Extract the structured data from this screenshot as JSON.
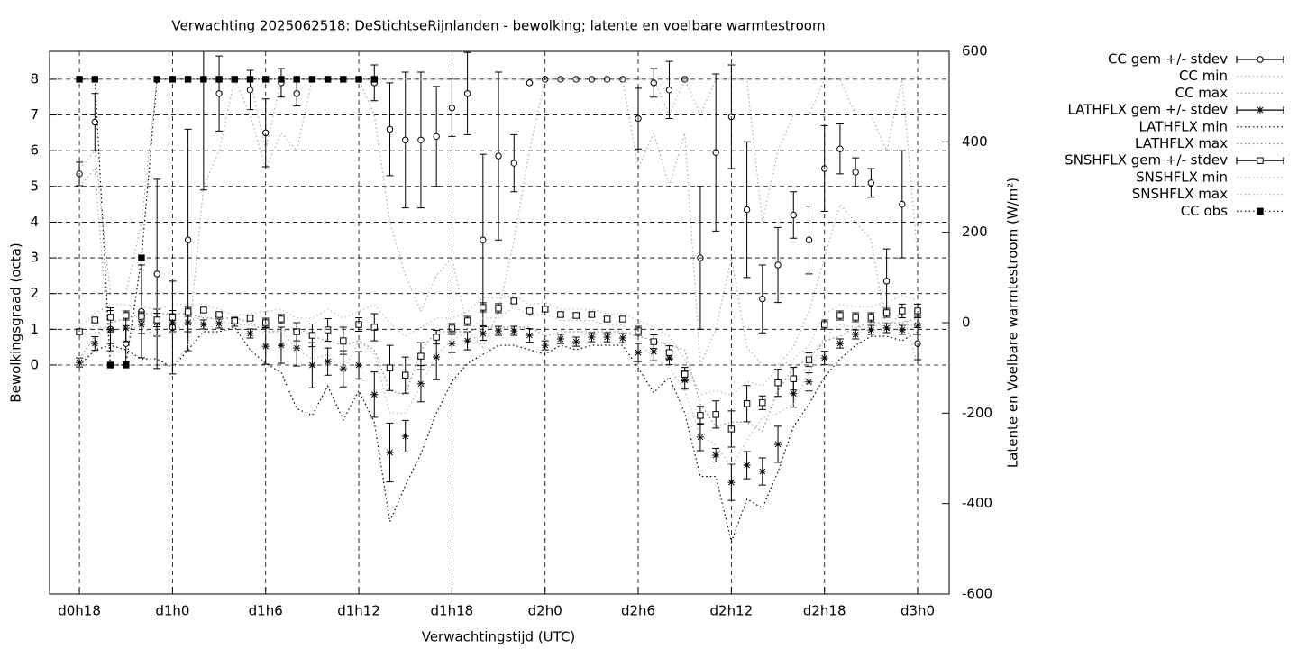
{
  "chart_data": {
    "type": "errorbar",
    "title": "Verwachting 2025062518: DeStichtseRijnlanden - bewolking; latente en voelbare warmtestroom",
    "x_label": "Verwachtingstijd (UTC)",
    "y_label": "Bewolkingsgraad (octa)",
    "y2_label": "Latente en Voelbare warmtestroom (W/m²)",
    "x": [
      18,
      19,
      20,
      21,
      22,
      23,
      24,
      25,
      26,
      27,
      28,
      29,
      30,
      31,
      32,
      33,
      34,
      35,
      36,
      37,
      38,
      39,
      40,
      41,
      42,
      43,
      44,
      45,
      46,
      47,
      48,
      49,
      50,
      51,
      52,
      53,
      54,
      55,
      56,
      57,
      58,
      59,
      60,
      61,
      62,
      63,
      64,
      65,
      66,
      67,
      68,
      69,
      70,
      71,
      72
    ],
    "xlim": [
      16.08,
      74.03
    ],
    "xticks": [
      {
        "value": 18,
        "label": "d0h18"
      },
      {
        "value": 24,
        "label": "d1h0"
      },
      {
        "value": 30,
        "label": "d1h6"
      },
      {
        "value": 36,
        "label": "d1h12"
      },
      {
        "value": 42,
        "label": "d1h18"
      },
      {
        "value": 48,
        "label": "d2h0"
      },
      {
        "value": 54,
        "label": "d2h6"
      },
      {
        "value": 60,
        "label": "d2h12"
      },
      {
        "value": 66,
        "label": "d2h18"
      },
      {
        "value": 72,
        "label": "d3h0"
      }
    ],
    "ylim": [
      -6.41,
      8.78
    ],
    "yticks": [
      0,
      1,
      2,
      3,
      4,
      5,
      6,
      7,
      8
    ],
    "y2lim": [
      -600,
      600
    ],
    "y2ticks": [
      -600,
      -400,
      -200,
      0,
      200,
      400,
      600
    ],
    "grid": true,
    "legend": "right",
    "series": [
      {
        "name": "CC gem +/- stdev",
        "color": "#000000",
        "marker": "circle",
        "dash": "none",
        "errorbars": true,
        "values": [
          5.35,
          6.8,
          1.0,
          0.6,
          1.5,
          2.55,
          1.05,
          3.5,
          8,
          7.6,
          8,
          7.7,
          6.5,
          7.9,
          7.6,
          8,
          8,
          8,
          8,
          7.9,
          6.6,
          6.3,
          6.3,
          6.4,
          7.2,
          7.6,
          3.5,
          5.85,
          5.65,
          7.9,
          8,
          8,
          8,
          8,
          8,
          8,
          6.9,
          7.9,
          7.7,
          8,
          3.0,
          5.95,
          6.95,
          4.35,
          1.85,
          2.8,
          4.2,
          3.5,
          5.5,
          6.05,
          5.4,
          5.1,
          2.35,
          4.5,
          0.6
        ],
        "errors": [
          0.33,
          0.8,
          0.6,
          0.5,
          1.3,
          2.65,
          1.3,
          3.1,
          3.1,
          1.05,
          0,
          0.55,
          0.95,
          0.4,
          0.35,
          0,
          0,
          0,
          0,
          0.5,
          1.3,
          1.9,
          1.9,
          1.4,
          0.8,
          1.15,
          2.4,
          2.35,
          0.8,
          0,
          0,
          0,
          0,
          0,
          0,
          0,
          0.85,
          0.4,
          0.8,
          0,
          2.0,
          2.2,
          1.45,
          1.9,
          0.95,
          1.05,
          0.65,
          0.95,
          1.2,
          0.7,
          0.4,
          0.4,
          0.9,
          1.5,
          0.45
        ]
      },
      {
        "name": "CC min",
        "color": "#aaaaaa",
        "marker": "none",
        "dash": "dotted",
        "values": [
          5,
          5.5,
          0,
          0,
          0,
          0,
          0,
          0.5,
          5,
          6,
          8,
          7,
          5.5,
          6.5,
          6,
          8,
          8,
          8,
          8,
          7,
          4,
          2.5,
          1.5,
          2.5,
          3,
          1,
          0.5,
          1.5,
          3.5,
          6,
          8,
          8,
          8,
          8,
          8,
          8,
          5.5,
          6.5,
          5,
          6.5,
          0,
          1,
          3,
          0.5,
          0,
          0,
          0.5,
          1.5,
          3,
          4.5,
          4,
          3.5,
          1,
          1.5,
          0
        ]
      },
      {
        "name": "CC max",
        "color": "#aaaaaa",
        "marker": "none",
        "dash": "dotted",
        "values": [
          5.5,
          6,
          2,
          2,
          4,
          8,
          8,
          8,
          8,
          8,
          8,
          8,
          6,
          8,
          8,
          8,
          8,
          8,
          8,
          8,
          8,
          8,
          8,
          8,
          8,
          8,
          8,
          8,
          8,
          8,
          8,
          8,
          8,
          8,
          8,
          8,
          8,
          8,
          7,
          8,
          7,
          8,
          8,
          8,
          4,
          6,
          7,
          7,
          8,
          8,
          7,
          7,
          6,
          8,
          3
        ]
      },
      {
        "name": "LATHFLX gem +/- stdev",
        "color": "#000000",
        "marker": "star",
        "dash": "none",
        "errorbars": true,
        "axis": "y2",
        "values": [
          -88,
          -46,
          -16,
          -12,
          -4,
          0,
          0,
          0,
          -4,
          -2,
          2,
          -24,
          -52,
          -50,
          -56,
          -94,
          -86,
          -102,
          -94,
          -159,
          -287,
          -251,
          -135,
          -76,
          -46,
          -40,
          -24,
          -18,
          -18,
          -28,
          -50,
          -36,
          -42,
          -32,
          -32,
          -34,
          -66,
          -64,
          -78,
          -127,
          -253,
          -293,
          -353,
          -315,
          -329,
          -269,
          -157,
          -131,
          -78,
          -46,
          -26,
          -16,
          -12,
          -16,
          -6
        ],
        "errors": [
          10,
          15,
          30,
          30,
          20,
          30,
          20,
          20,
          10,
          10,
          10,
          10,
          40,
          40,
          40,
          50,
          30,
          40,
          30,
          50,
          65,
          35,
          40,
          50,
          20,
          20,
          15,
          10,
          10,
          15,
          10,
          10,
          10,
          10,
          10,
          10,
          20,
          20,
          15,
          20,
          30,
          15,
          40,
          30,
          30,
          40,
          30,
          20,
          15,
          10,
          10,
          10,
          10,
          10,
          20
        ]
      },
      {
        "name": "LATHFLX min",
        "color": "#000000",
        "marker": "none",
        "dash": "dotted",
        "axis": "y2",
        "values": [
          -95,
          -60,
          -50,
          -60,
          -80,
          -80,
          -100,
          -60,
          -20,
          -20,
          -10,
          -60,
          -90,
          -110,
          -190,
          -205,
          -140,
          -215,
          -150,
          -220,
          -440,
          -360,
          -290,
          -200,
          -130,
          -90,
          -70,
          -50,
          -50,
          -60,
          -70,
          -50,
          -60,
          -50,
          -50,
          -50,
          -100,
          -155,
          -120,
          -200,
          -340,
          -340,
          -485,
          -390,
          -410,
          -330,
          -230,
          -180,
          -120,
          -80,
          -50,
          -30,
          -30,
          -40,
          -20
        ]
      },
      {
        "name": "LATHFLX max",
        "color": "#888888",
        "marker": "none",
        "dash": "dotted",
        "axis": "y2",
        "values": [
          -80,
          -30,
          0,
          10,
          20,
          20,
          20,
          20,
          10,
          10,
          10,
          0,
          -20,
          -20,
          -10,
          -30,
          -40,
          -50,
          -40,
          -60,
          -150,
          -160,
          -60,
          -20,
          -20,
          -20,
          -10,
          -10,
          -10,
          -10,
          -30,
          -20,
          -20,
          -20,
          -20,
          -20,
          -30,
          -40,
          -50,
          -60,
          -180,
          -230,
          -220,
          -220,
          -240,
          -150,
          -100,
          -80,
          -40,
          -30,
          -10,
          0,
          0,
          0,
          10
        ]
      },
      {
        "name": "SNSHFLX gem +/- stdev",
        "color": "#000000",
        "marker": "square",
        "dash": "none",
        "errorbars": true,
        "axis": "y2",
        "values": [
          -20,
          6,
          12,
          16,
          14,
          6,
          12,
          24,
          28,
          18,
          4,
          10,
          0,
          8,
          -20,
          -28,
          -16,
          -40,
          -4,
          -10,
          -100,
          -116,
          -74,
          -32,
          -12,
          4,
          34,
          32,
          48,
          26,
          30,
          18,
          16,
          18,
          8,
          8,
          -18,
          -42,
          -66,
          -114,
          -205,
          -203,
          -235,
          -179,
          -177,
          -133,
          -124,
          -82,
          -4,
          16,
          12,
          12,
          22,
          26,
          26
        ],
        "errors": [
          5,
          5,
          15,
          10,
          10,
          15,
          15,
          10,
          5,
          5,
          5,
          5,
          10,
          10,
          20,
          25,
          25,
          30,
          15,
          30,
          50,
          40,
          30,
          15,
          10,
          10,
          10,
          10,
          5,
          5,
          5,
          5,
          5,
          5,
          5,
          5,
          10,
          15,
          15,
          15,
          20,
          30,
          40,
          40,
          15,
          30,
          25,
          15,
          10,
          10,
          10,
          10,
          10,
          15,
          15
        ]
      },
      {
        "name": "SNSHFLX min",
        "color": "#bbbbbb",
        "marker": "none",
        "dash": "dotted",
        "axis": "y2",
        "values": [
          -30,
          -5,
          -20,
          -10,
          -10,
          -30,
          -20,
          0,
          15,
          5,
          -5,
          -5,
          -25,
          -15,
          -60,
          -80,
          -70,
          -110,
          -40,
          -70,
          -200,
          -200,
          -140,
          -70,
          -40,
          -20,
          10,
          10,
          35,
          15,
          20,
          5,
          5,
          5,
          -5,
          -5,
          -40,
          -80,
          -100,
          -150,
          -250,
          -270,
          -320,
          -260,
          -210,
          -200,
          -180,
          -110,
          -30,
          -5,
          -10,
          -10,
          0,
          -5,
          -5
        ]
      },
      {
        "name": "SNSHFLX max",
        "color": "#bbbbbb",
        "marker": "none",
        "dash": "dotted",
        "axis": "y2",
        "values": [
          -10,
          20,
          40,
          40,
          35,
          30,
          40,
          40,
          40,
          30,
          15,
          20,
          25,
          30,
          10,
          10,
          30,
          10,
          25,
          40,
          0,
          -30,
          -10,
          10,
          10,
          25,
          55,
          55,
          60,
          40,
          45,
          30,
          30,
          30,
          20,
          20,
          5,
          -10,
          -30,
          -80,
          -160,
          -150,
          -160,
          -130,
          -140,
          -100,
          -80,
          -50,
          20,
          40,
          35,
          35,
          45,
          60,
          50
        ]
      },
      {
        "name": "CC obs",
        "color": "#000000",
        "marker": "filled-square",
        "dash": "dotted",
        "values": [
          8,
          8,
          0,
          0,
          3,
          8,
          8,
          8,
          8,
          8,
          8,
          8,
          8,
          8,
          8,
          8,
          8,
          8,
          8,
          8,
          null,
          null,
          null,
          null,
          null,
          null,
          null,
          null,
          null,
          null,
          null,
          null,
          null,
          null,
          null,
          null,
          null,
          null,
          null,
          null,
          null,
          null,
          null,
          null,
          null,
          null,
          null,
          null,
          null,
          null,
          null,
          null,
          null,
          null,
          null
        ]
      }
    ]
  }
}
